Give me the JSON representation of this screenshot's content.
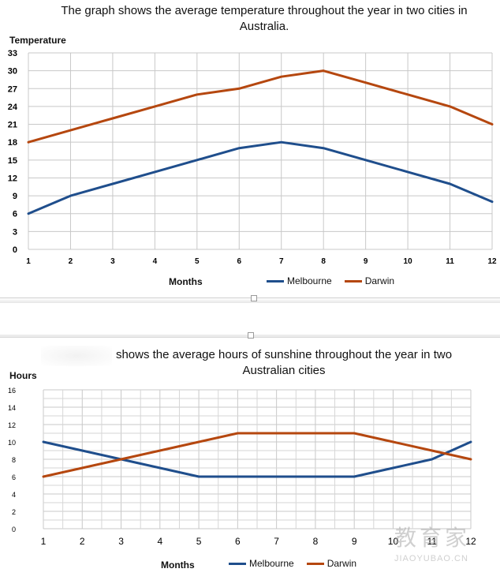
{
  "charts": [
    {
      "title": "The graph shows the average temperature throughout the year in two cities in Australia.",
      "ylabel": "Temperature",
      "xlabel": "Months"
    },
    {
      "title": "shows the average hours of sunshine throughout the year in two Australian cities",
      "ylabel": "Hours",
      "xlabel": "Months"
    }
  ],
  "watermark": {
    "main": "教育家",
    "sub": "JIAOYUBAO.CN"
  },
  "chart_data": [
    {
      "type": "line",
      "title": "The graph shows the average temperature throughout the year in two cities in Australia.",
      "xlabel": "Months",
      "ylabel": "Temperature",
      "categories": [
        "1",
        "2",
        "3",
        "4",
        "5",
        "6",
        "7",
        "8",
        "9",
        "10",
        "11",
        "12"
      ],
      "ylim": [
        0,
        33
      ],
      "yticks": [
        0,
        3,
        6,
        9,
        12,
        15,
        18,
        21,
        24,
        27,
        30,
        33
      ],
      "grid": true,
      "legend": "bottom",
      "series": [
        {
          "name": "Melbourne",
          "color": "#1f4e8c",
          "values": [
            6,
            9,
            11,
            13,
            15,
            17,
            18,
            17,
            15,
            13,
            11,
            8
          ]
        },
        {
          "name": "Darwin",
          "color": "#b5470f",
          "values": [
            18,
            20,
            22,
            24,
            26,
            27,
            29,
            30,
            28,
            26,
            24,
            21
          ]
        }
      ]
    },
    {
      "type": "line",
      "title": "shows the average hours of sunshine throughout the year in two Australian cities",
      "xlabel": "Months",
      "ylabel": "Hours",
      "categories": [
        "1",
        "2",
        "3",
        "4",
        "5",
        "6",
        "7",
        "8",
        "9",
        "10",
        "11",
        "12"
      ],
      "ylim": [
        0,
        16
      ],
      "yticks": [
        0,
        2,
        4,
        6,
        8,
        10,
        12,
        14,
        16
      ],
      "grid": true,
      "legend": "bottom",
      "series": [
        {
          "name": "Melbourne",
          "color": "#1f4e8c",
          "values": [
            10,
            9,
            8,
            7,
            6,
            6,
            6,
            6,
            6,
            7,
            8,
            10
          ]
        },
        {
          "name": "Darwin",
          "color": "#b5470f",
          "values": [
            6,
            7,
            8,
            9,
            10,
            11,
            11,
            11,
            11,
            10,
            9,
            8
          ]
        }
      ]
    }
  ]
}
